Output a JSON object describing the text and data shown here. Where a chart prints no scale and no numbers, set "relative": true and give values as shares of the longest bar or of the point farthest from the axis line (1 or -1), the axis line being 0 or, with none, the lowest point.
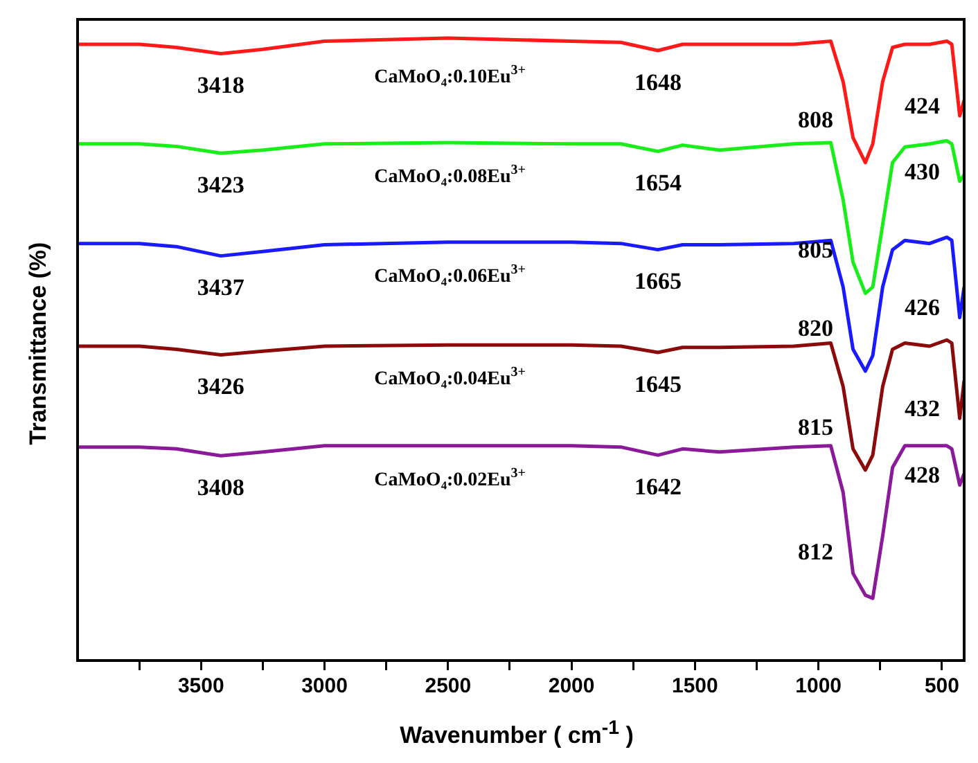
{
  "chart_data": {
    "type": "line",
    "relative": true,
    "xlabel": "Wavenumber ( cm$^{-1}$ )",
    "ylabel": "Transmittance (%)",
    "x": [
      4000,
      3750,
      3600,
      3420,
      3250,
      3000,
      2500,
      2000,
      1800,
      1650,
      1550,
      1400,
      1100,
      950,
      900,
      860,
      810,
      780,
      740,
      700,
      650,
      550,
      480,
      460,
      428,
      410
    ],
    "xlim": [
      4000,
      410
    ],
    "xticks": [
      {
        "value": 3750,
        "label": null
      },
      3500,
      {
        "value": 3250,
        "label": null
      },
      3000,
      {
        "value": 2750,
        "label": null
      },
      2500,
      {
        "value": 2250,
        "label": null
      },
      2000,
      {
        "value": 1750,
        "label": null
      },
      1500,
      {
        "value": 1250,
        "label": null
      },
      1000,
      {
        "value": 750,
        "label": null
      },
      500
    ],
    "grid": false,
    "legend": false,
    "series": [
      {
        "name": "CaMoO₄:0.10Eu$^{3+}$",
        "color": "#ff1a1a",
        "values": [
          0.99,
          0.99,
          0.985,
          0.975,
          0.982,
          0.995,
          1,
          0.995,
          0.993,
          0.98,
          0.99,
          0.99,
          0.99,
          0.995,
          0.93,
          0.84,
          0.8,
          0.83,
          0.93,
          0.985,
          0.99,
          0.99,
          0.995,
          0.99,
          0.875,
          0.9
        ]
      },
      {
        "name": "CaMoO₄:0.08Eu$^{3+}$",
        "color": "#1aee1a",
        "values": [
          0.83,
          0.83,
          0.826,
          0.815,
          0.82,
          0.83,
          0.832,
          0.83,
          0.83,
          0.818,
          0.828,
          0.82,
          0.83,
          0.832,
          0.74,
          0.64,
          0.59,
          0.6,
          0.7,
          0.8,
          0.825,
          0.83,
          0.835,
          0.83,
          0.77,
          0.78
        ]
      },
      {
        "name": "CaMoO₄:0.06Eu$^{3+}$",
        "color": "#1a1aff",
        "values": [
          0.67,
          0.67,
          0.665,
          0.65,
          0.657,
          0.668,
          0.672,
          0.672,
          0.67,
          0.66,
          0.668,
          0.668,
          0.67,
          0.675,
          0.6,
          0.5,
          0.465,
          0.49,
          0.6,
          0.66,
          0.675,
          0.67,
          0.68,
          0.675,
          0.551,
          0.6
        ]
      },
      {
        "name": "CaMoO₄:0.04Eu$^{3+}$",
        "color": "#8b0a0a",
        "values": [
          0.505,
          0.505,
          0.5,
          0.491,
          0.497,
          0.505,
          0.507,
          0.507,
          0.505,
          0.495,
          0.503,
          0.503,
          0.505,
          0.51,
          0.44,
          0.34,
          0.306,
          0.33,
          0.44,
          0.5,
          0.51,
          0.505,
          0.515,
          0.51,
          0.389,
          0.45
        ]
      },
      {
        "name": "CaMoO₄:0.02Eu$^{3+}$",
        "color": "#8b1a9b",
        "values": [
          0.343,
          0.343,
          0.34,
          0.329,
          0.335,
          0.345,
          0.345,
          0.345,
          0.343,
          0.33,
          0.34,
          0.335,
          0.343,
          0.345,
          0.27,
          0.14,
          0.105,
          0.1,
          0.2,
          0.31,
          0.345,
          0.345,
          0.345,
          0.34,
          0.282,
          0.3
        ]
      }
    ],
    "annotations": [
      {
        "text": "3418",
        "x": 3420,
        "y": 0.975
      },
      {
        "text": "1648",
        "x": 1650,
        "y": 0.98
      },
      {
        "text": "808",
        "x": 810,
        "y": 0.8
      },
      {
        "text": "424",
        "x": 428,
        "y": 0.875
      },
      {
        "text": "3423",
        "x": 3420,
        "y": 0.815
      },
      {
        "text": "1654",
        "x": 1650,
        "y": 0.818
      },
      {
        "text": "805",
        "x": 810,
        "y": 0.59
      },
      {
        "text": "430",
        "x": 428,
        "y": 0.77
      },
      {
        "text": "3437",
        "x": 3420,
        "y": 0.65
      },
      {
        "text": "1665",
        "x": 1650,
        "y": 0.66
      },
      {
        "text": "820",
        "x": 810,
        "y": 0.465
      },
      {
        "text": "426",
        "x": 428,
        "y": 0.551
      },
      {
        "text": "3426",
        "x": 3420,
        "y": 0.491
      },
      {
        "text": "1645",
        "x": 1650,
        "y": 0.495
      },
      {
        "text": "815",
        "x": 810,
        "y": 0.306
      },
      {
        "text": "432",
        "x": 428,
        "y": 0.389
      },
      {
        "text": "3408",
        "x": 3420,
        "y": 0.329
      },
      {
        "text": "1642",
        "x": 1650,
        "y": 0.33
      },
      {
        "text": "812",
        "x": 810,
        "y": 0.105
      },
      {
        "text": "428",
        "x": 428,
        "y": 0.282
      }
    ]
  }
}
